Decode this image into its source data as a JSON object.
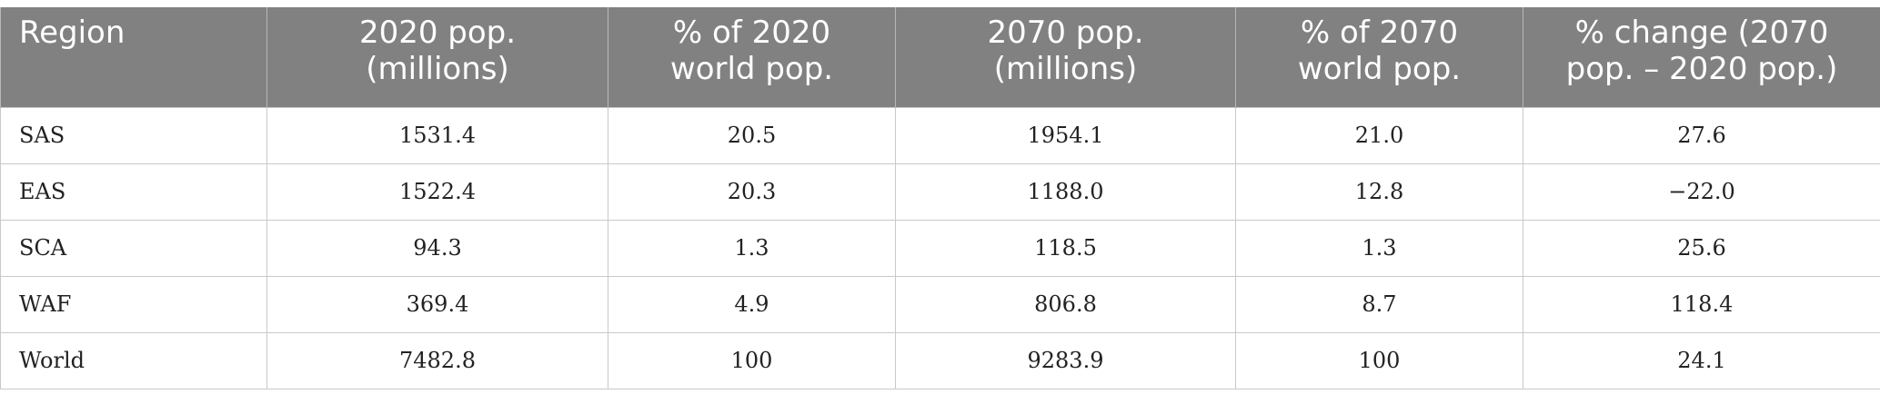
{
  "table": {
    "headers": [
      "Region",
      "2020 pop.\n(millions)",
      "% of 2020\nworld pop.",
      "2070 pop.\n(millions)",
      "% of 2070\nworld pop.",
      "% change (2070\npop. – 2020 pop.)"
    ],
    "rows": [
      [
        "SAS",
        "1531.4",
        "20.5",
        "1954.1",
        "21.0",
        "27.6"
      ],
      [
        "EAS",
        "1522.4",
        "20.3",
        "1188.0",
        "12.8",
        "−22.0"
      ],
      [
        "SCA",
        "94.3",
        "1.3",
        "118.5",
        "1.3",
        "25.6"
      ],
      [
        "WAF",
        "369.4",
        "4.9",
        "806.8",
        "8.7",
        "118.4"
      ],
      [
        "World",
        "7482.8",
        "100",
        "9283.9",
        "100",
        "24.1"
      ]
    ]
  },
  "colors": {
    "header_background": "#808180",
    "header_text": "#ffffff",
    "grid_line": "#c9c9c9"
  }
}
